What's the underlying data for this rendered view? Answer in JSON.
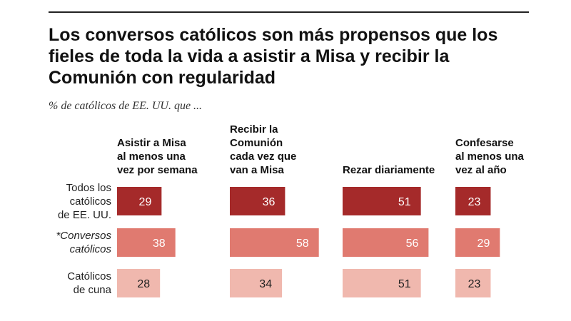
{
  "title_lines": [
    "Los conversos católicos son más propensos que los",
    "fieles de toda la vida a asistir a Misa y recibir la",
    "Comunión con regularidad"
  ],
  "subtitle": "% de católicos de EE. UU. que ...",
  "colors": {
    "row_0": "#a52a2a",
    "row_1": "#e07a70",
    "row_2": "#f0b8ae",
    "label_light": "#ffffff",
    "label_dark": "#222222"
  },
  "chart_data": {
    "type": "bar",
    "title": "Los conversos católicos son más propensos que los fieles de toda la vida a asistir a Misa y recibir la Comunión con regularidad",
    "subtitle": "% de católicos de EE. UU. que ...",
    "columns": [
      {
        "label_lines": [
          "Asistir a Misa",
          "al menos una",
          "vez por semana"
        ]
      },
      {
        "label_lines": [
          "Recibir la",
          "Comunión",
          "cada vez que",
          "van a Misa"
        ]
      },
      {
        "label_lines": [
          "Rezar diariamente"
        ]
      },
      {
        "label_lines": [
          "Confesarse",
          "al menos una",
          "vez al año"
        ]
      }
    ],
    "rows": [
      {
        "label_lines": [
          "Todos los",
          "católicos",
          "de EE. UU."
        ],
        "italic": false,
        "values": [
          29,
          36,
          51,
          23
        ]
      },
      {
        "label_lines": [
          "*Conversos",
          "católicos"
        ],
        "italic": true,
        "values": [
          38,
          58,
          56,
          29
        ]
      },
      {
        "label_lines": [
          "Católicos",
          "de cuna"
        ],
        "italic": false,
        "values": [
          28,
          34,
          51,
          23
        ]
      }
    ]
  }
}
